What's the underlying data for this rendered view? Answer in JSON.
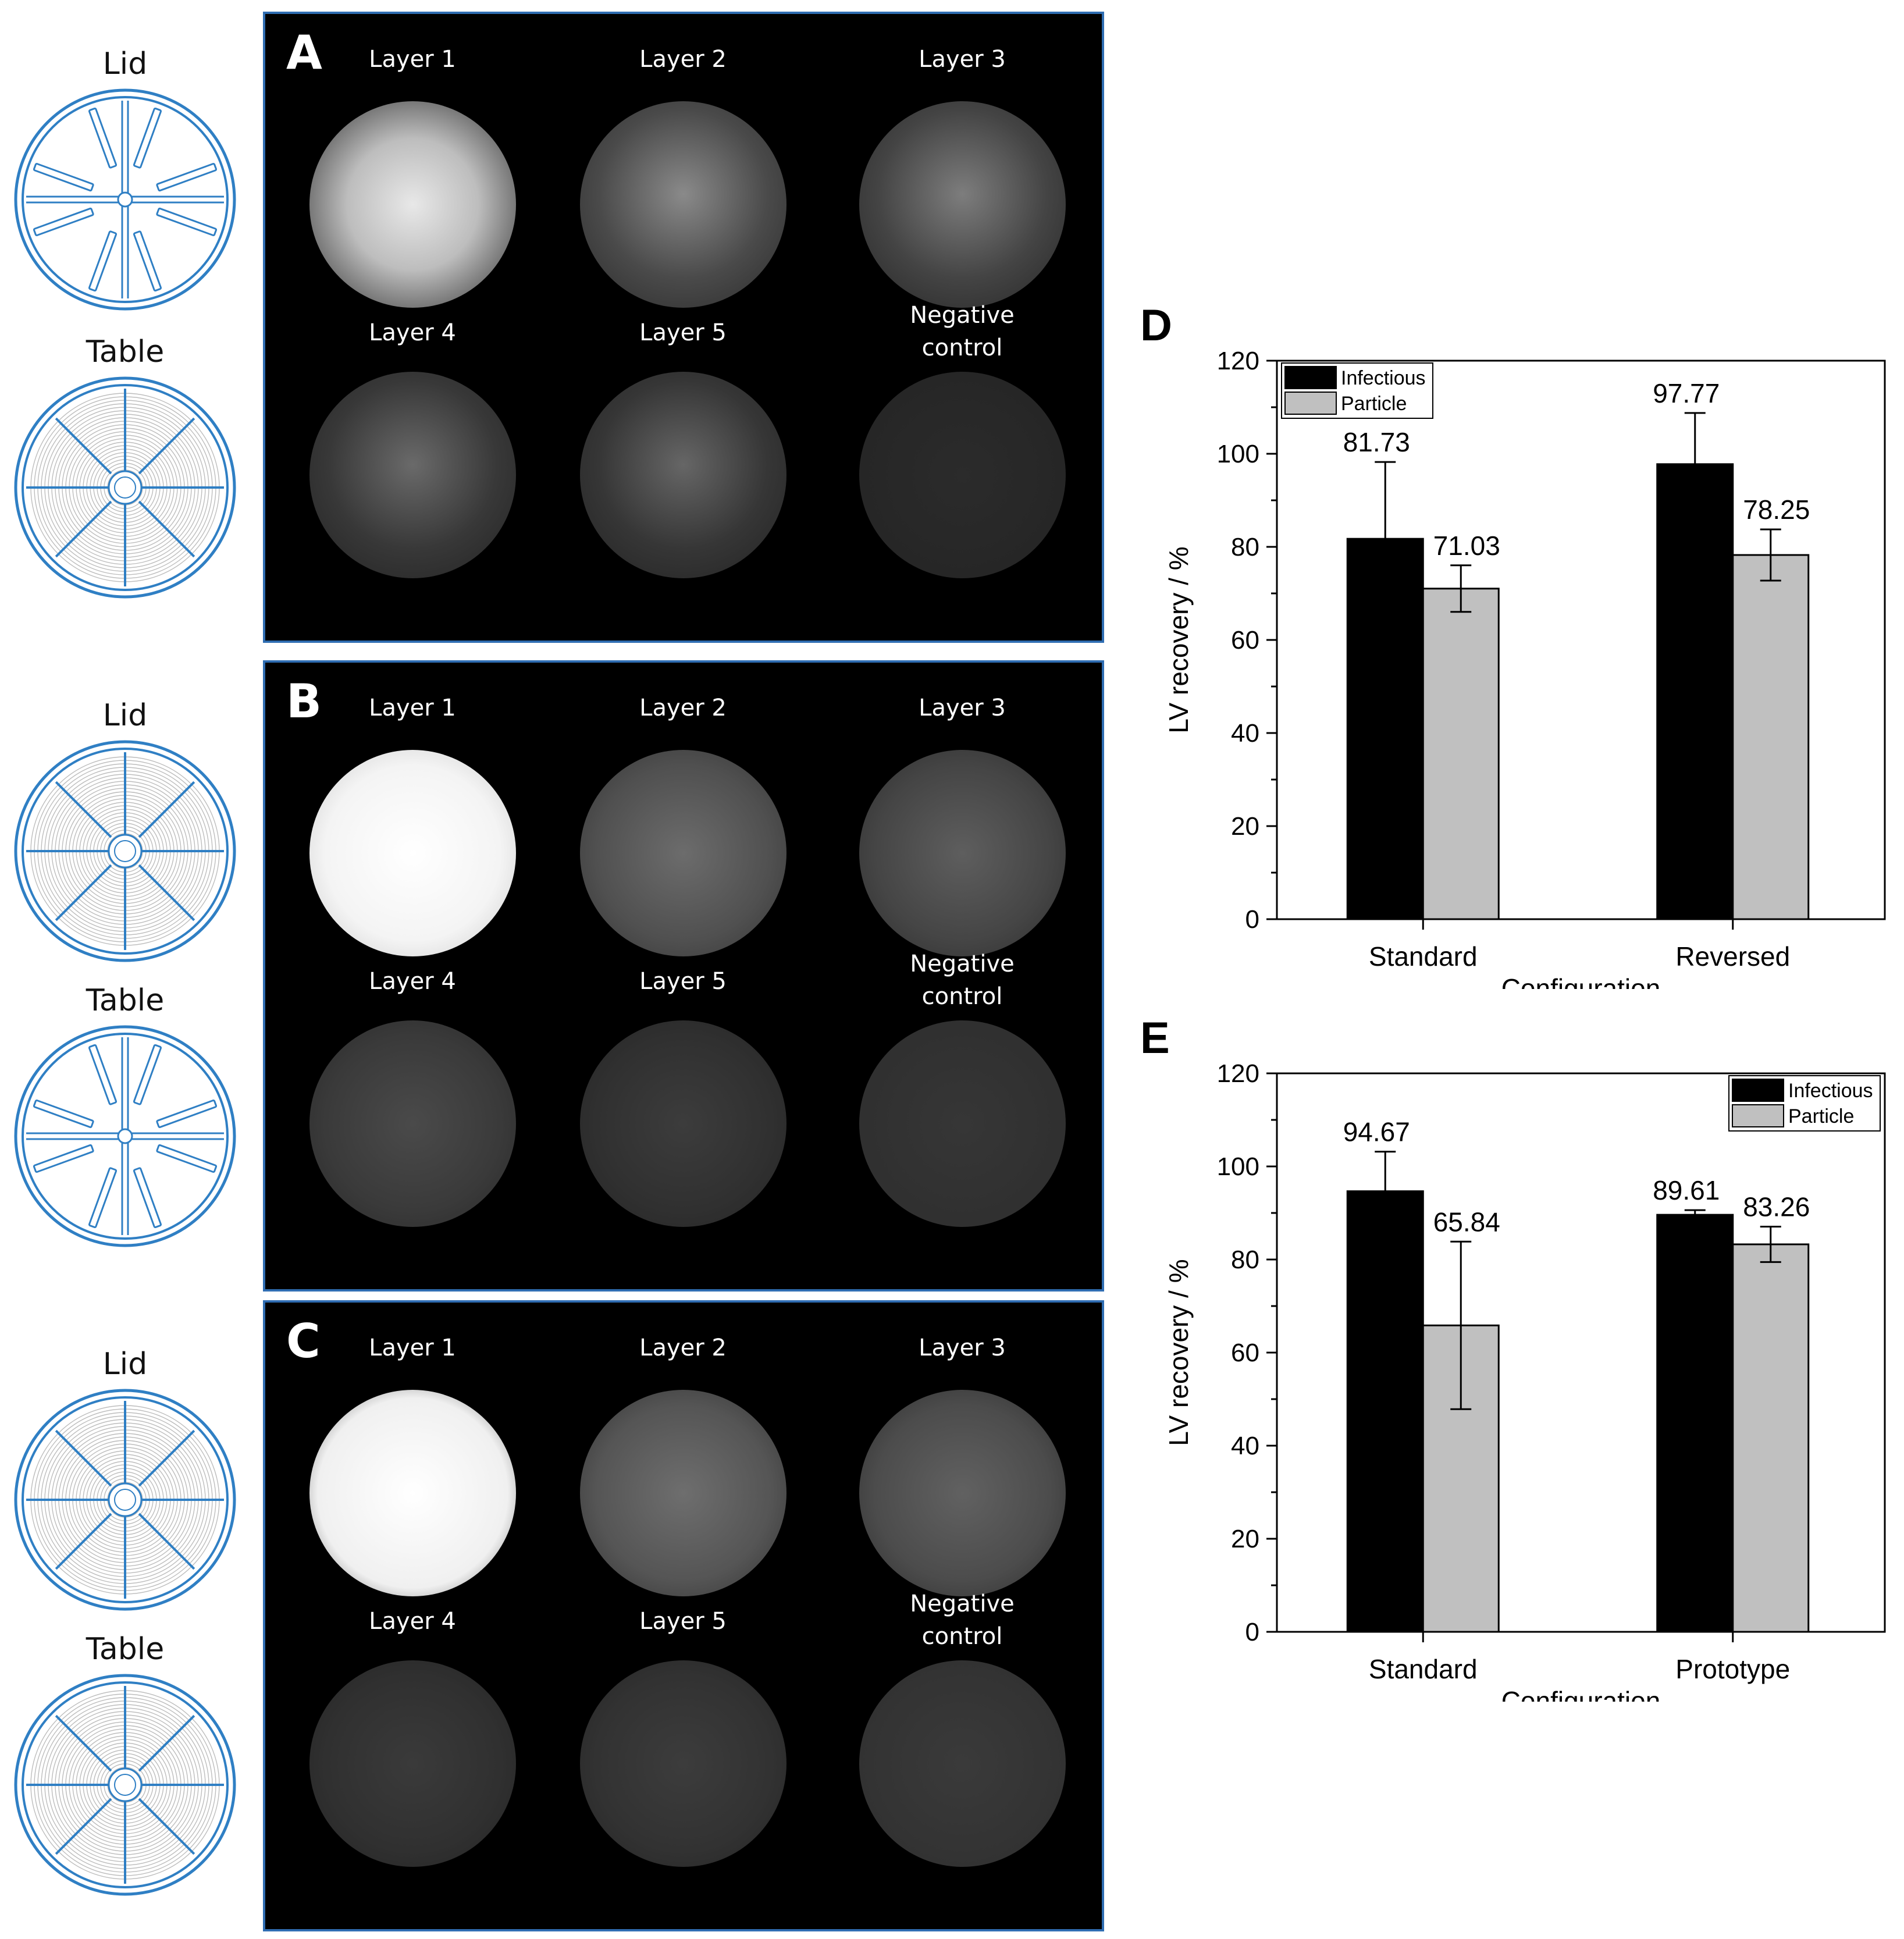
{
  "diagram_labels": {
    "lid": "Lid",
    "table": "Table"
  },
  "panels": [
    {
      "letter": "A",
      "layers": [
        "Layer 1",
        "Layer 2",
        "Layer 3",
        "Layer 4",
        "Layer 5"
      ],
      "negative_control": [
        "Negative",
        "control"
      ],
      "top_diagram": "lid-spokes",
      "bottom_diagram": "table-grooved"
    },
    {
      "letter": "B",
      "layers": [
        "Layer 1",
        "Layer 2",
        "Layer 3",
        "Layer 4",
        "Layer 5"
      ],
      "negative_control": [
        "Negative",
        "control"
      ],
      "top_diagram": "lid-grooved",
      "bottom_diagram": "table-spokes"
    },
    {
      "letter": "C",
      "layers": [
        "Layer 1",
        "Layer 2",
        "Layer 3",
        "Layer 4",
        "Layer 5"
      ],
      "negative_control": [
        "Negative",
        "control"
      ],
      "top_diagram": "lid-grooved",
      "bottom_diagram": "table-grooved"
    }
  ],
  "colors": {
    "diagram_stroke": "#2f7fc4",
    "panel_border": "#2f6db2",
    "infectious": "#000000",
    "particle": "#c0c0c0"
  },
  "chart_data": [
    {
      "panel": "D",
      "type": "bar",
      "categories": [
        "Standard",
        "Reversed"
      ],
      "xlabel": "Configuration",
      "ylabel": "LV recovery / %",
      "ylim": [
        0,
        120
      ],
      "yticks": [
        0,
        20,
        40,
        60,
        80,
        100,
        120
      ],
      "legend_position": "top-left",
      "series": [
        {
          "name": "Infectious",
          "values": [
            81.73,
            97.77
          ],
          "error": [
            16.5,
            11.0
          ],
          "labels": [
            "81.73",
            "97.77"
          ]
        },
        {
          "name": "Particle",
          "values": [
            71.03,
            78.25
          ],
          "error": [
            5.0,
            5.5
          ],
          "labels": [
            "71.03",
            "78.25"
          ]
        }
      ]
    },
    {
      "panel": "E",
      "type": "bar",
      "categories": [
        "Standard",
        "Prototype"
      ],
      "xlabel": "Configuration",
      "ylabel": "LV recovery / %",
      "ylim": [
        0,
        120
      ],
      "yticks": [
        0,
        20,
        40,
        60,
        80,
        100,
        120
      ],
      "legend_position": "top-right",
      "series": [
        {
          "name": "Infectious",
          "values": [
            94.67,
            89.61
          ],
          "error": [
            8.5,
            1.0
          ],
          "labels": [
            "94.67",
            "89.61"
          ]
        },
        {
          "name": "Particle",
          "values": [
            65.84,
            83.26
          ],
          "error": [
            18.0,
            3.8
          ],
          "labels": [
            "65.84",
            "83.26"
          ]
        }
      ]
    }
  ]
}
